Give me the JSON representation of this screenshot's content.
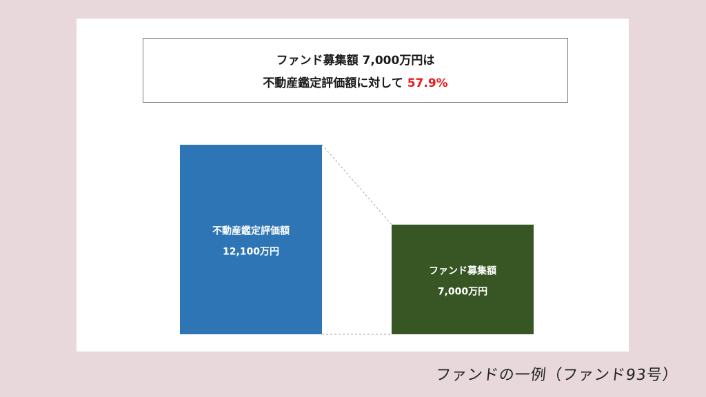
{
  "headline": {
    "line1": "ファンド募集額 7,000万円は",
    "line2_prefix": "不動産鑑定評価額に対して",
    "line2_value": "57.9%",
    "highlight_color": "#e8191b"
  },
  "chart_data": {
    "type": "bar",
    "categories": [
      "不動産鑑定評価額",
      "ファンド募集額"
    ],
    "values": [
      12100,
      7000
    ],
    "data_labels": [
      "12,100万円",
      "7,000万円"
    ],
    "colors": [
      "#2e75b6",
      "#375623"
    ],
    "ratio_label": "57.9%",
    "connector_lines": true
  },
  "caption": "ファンドの一例（ファンド93号）"
}
